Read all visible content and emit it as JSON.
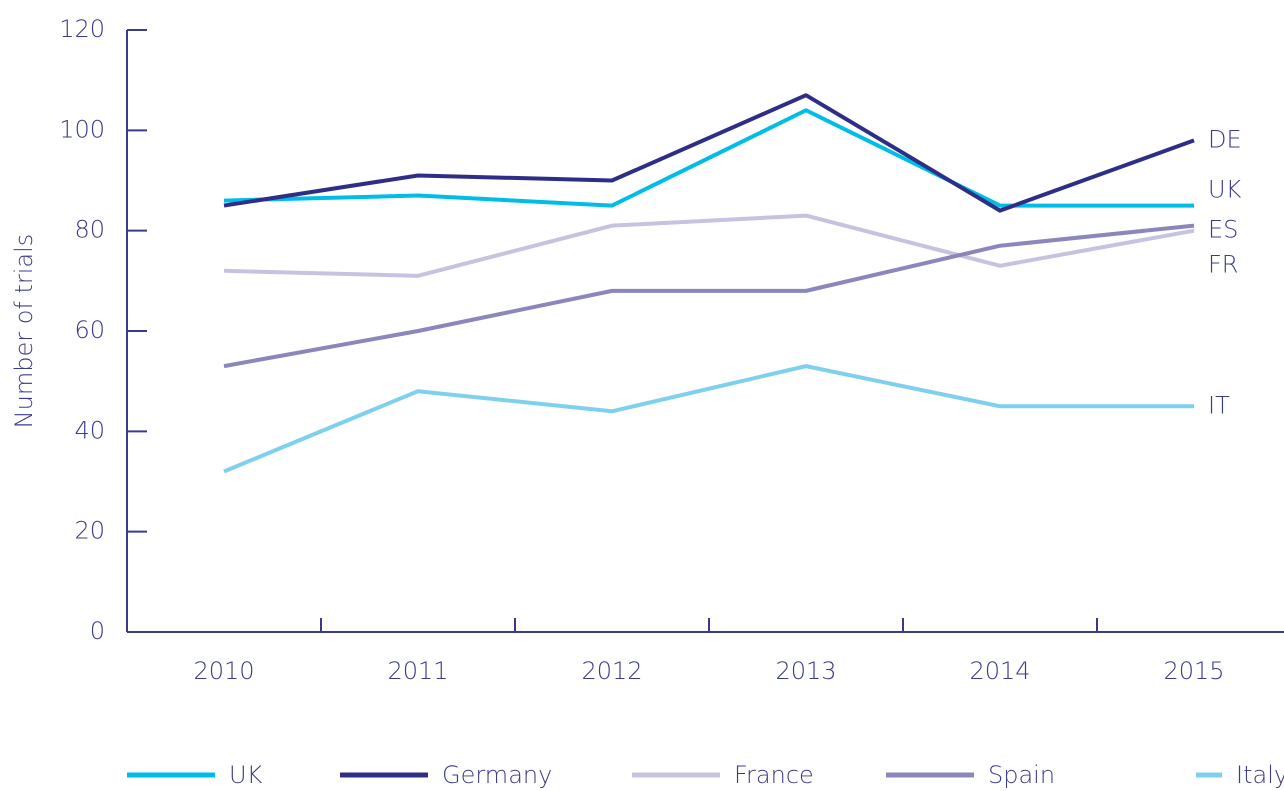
{
  "chart_data": {
    "type": "line",
    "y_label": "Number of trials",
    "categories": [
      "2010",
      "2011",
      "2012",
      "2013",
      "2014",
      "2015"
    ],
    "series": [
      {
        "name": "UK",
        "end_label": "UK",
        "color": "#00bde8",
        "values": [
          86,
          87,
          85,
          104,
          85,
          85
        ]
      },
      {
        "name": "Germany",
        "end_label": "DE",
        "color": "#2e2e86",
        "values": [
          85,
          91,
          90,
          107,
          84,
          98
        ]
      },
      {
        "name": "France",
        "end_label": "FR",
        "color": "#c5c3e0",
        "values": [
          72,
          71,
          81,
          83,
          73,
          80
        ]
      },
      {
        "name": "Spain",
        "end_label": "ES",
        "color": "#8b86bb",
        "values": [
          53,
          60,
          68,
          68,
          77,
          81
        ]
      },
      {
        "name": "Italy",
        "end_label": "IT",
        "color": "#7fd0ef",
        "values": [
          32,
          48,
          44,
          53,
          45,
          45
        ]
      }
    ],
    "ylim": [
      0,
      120
    ],
    "yticks": [
      0,
      20,
      40,
      60,
      80,
      100,
      120
    ],
    "grid": false
  }
}
